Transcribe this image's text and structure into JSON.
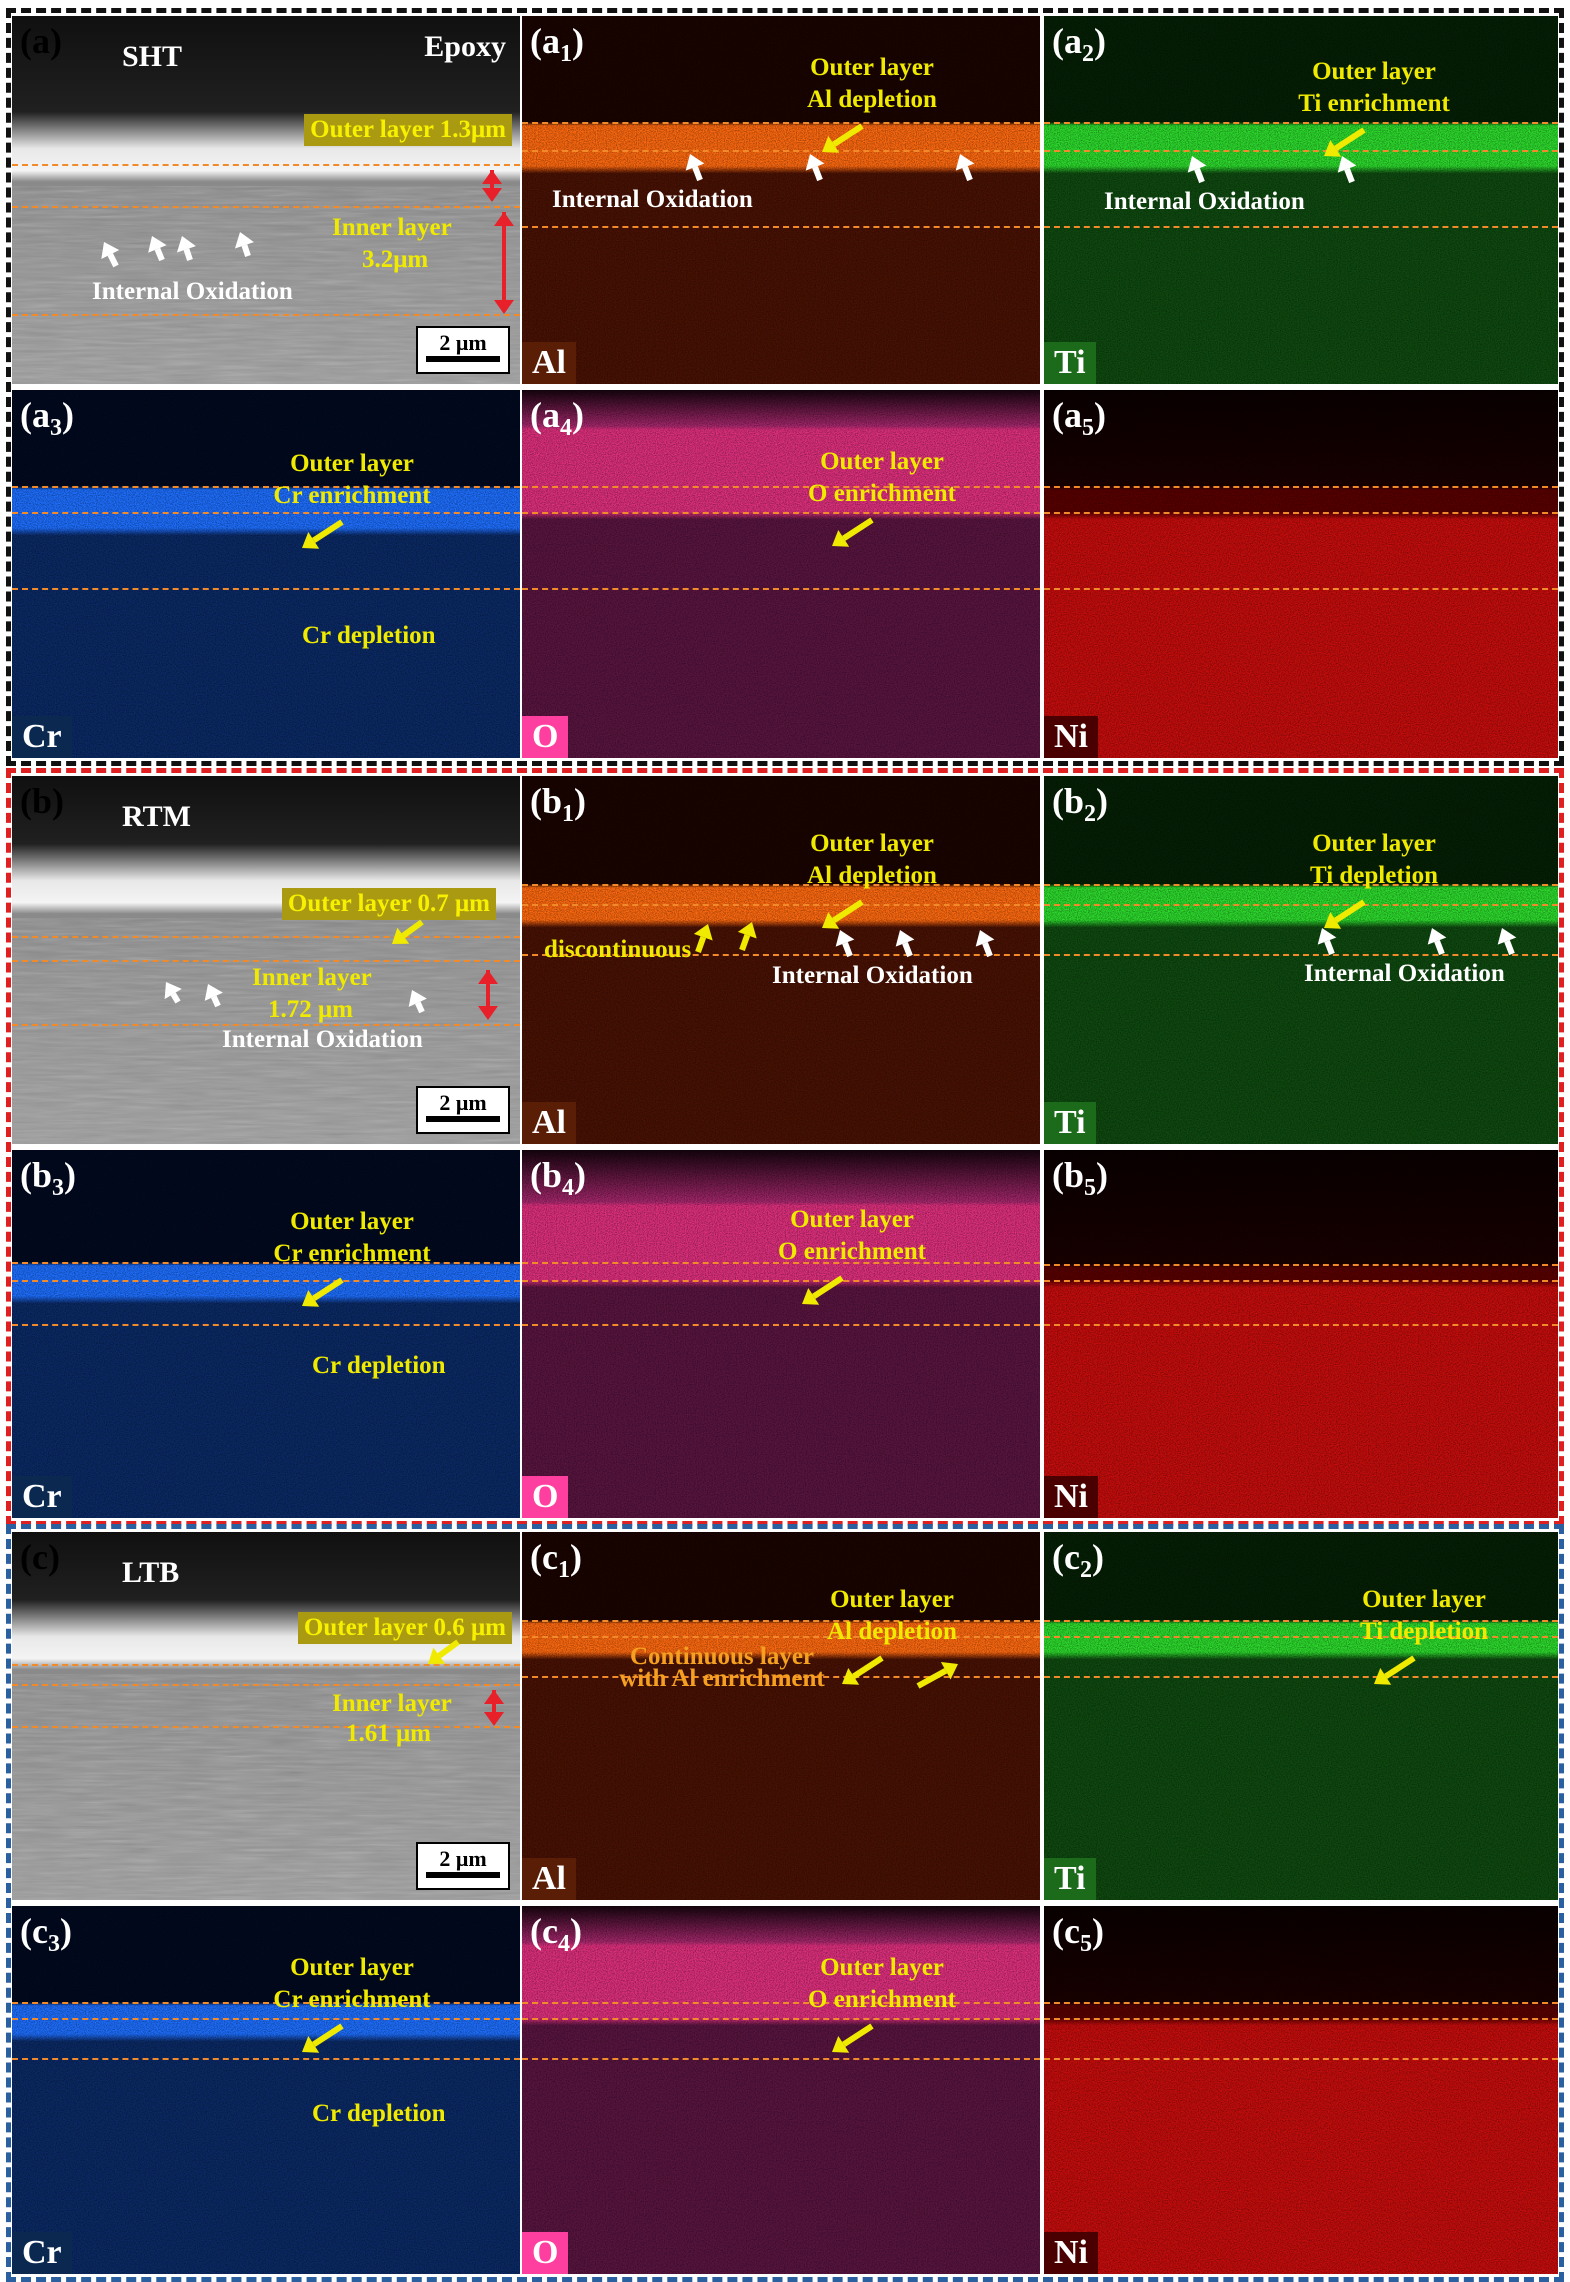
{
  "colors": {
    "frame_a": "#111111",
    "frame_b": "#e02020",
    "frame_c": "#2a5fa0",
    "annotation_yellow": "#f0ea00",
    "dashed_line": "#f08a2a",
    "al_map": "#ff6a10",
    "ti_map": "#2ddc2d",
    "cr_map": "#1e6fff",
    "o_map": "#ff3fa0",
    "ni_map": "#ff1a1a"
  },
  "groups": [
    {
      "id": "a",
      "sample": "SHT",
      "sem": {
        "label_main": "(a)",
        "label_sub": "",
        "sample": "SHT",
        "extra": "Epoxy",
        "outer": "Outer layer  1.3μm",
        "inner1": "Inner layer",
        "inner2": "3.2μm",
        "internal": "Internal Oxidation",
        "scale": "2 μm"
      },
      "maps": [
        {
          "label": "a",
          "sub": "1",
          "element": "Al",
          "ann1": "Outer layer",
          "ann2": "Al  depletion",
          "internal": "Internal Oxidation"
        },
        {
          "label": "a",
          "sub": "2",
          "element": "Ti",
          "ann1": "Outer layer",
          "ann2": "Ti  enrichment",
          "internal": "Internal Oxidation"
        },
        {
          "label": "a",
          "sub": "3",
          "element": "Cr",
          "ann1": "Outer layer",
          "ann2": "Cr  enrichment",
          "extra": "Cr  depletion"
        },
        {
          "label": "a",
          "sub": "4",
          "element": "O",
          "ann1": "Outer layer",
          "ann2": "O  enrichment"
        },
        {
          "label": "a",
          "sub": "5",
          "element": "Ni"
        }
      ]
    },
    {
      "id": "b",
      "sample": "RTM",
      "sem": {
        "label_main": "(b)",
        "label_sub": "",
        "sample": "RTM",
        "extra": "",
        "outer": "Outer layer  0.7 μm",
        "inner1": "Inner layer",
        "inner2": "1.72 μm",
        "internal": "Internal Oxidation",
        "scale": "2 μm"
      },
      "maps": [
        {
          "label": "b",
          "sub": "1",
          "element": "Al",
          "ann1": "Outer layer",
          "ann2": "Al  depletion",
          "internal": "Internal Oxidation",
          "extra": "discontinuous"
        },
        {
          "label": "b",
          "sub": "2",
          "element": "Ti",
          "ann1": "Outer layer",
          "ann2": "Ti depletion",
          "internal": "Internal Oxidation"
        },
        {
          "label": "b",
          "sub": "3",
          "element": "Cr",
          "ann1": "Outer layer",
          "ann2": "Cr  enrichment",
          "extra": "Cr  depletion"
        },
        {
          "label": "b",
          "sub": "4",
          "element": "O",
          "ann1": "Outer layer",
          "ann2": "O  enrichment"
        },
        {
          "label": "b",
          "sub": "5",
          "element": "Ni"
        }
      ]
    },
    {
      "id": "c",
      "sample": "LTB",
      "sem": {
        "label_main": "(c)",
        "label_sub": "",
        "sample": "LTB",
        "extra": "",
        "outer": "Outer layer  0.6 μm",
        "inner1": "Inner layer",
        "inner2": "1.61 μm",
        "internal": "",
        "scale": "2 μm"
      },
      "maps": [
        {
          "label": "c",
          "sub": "1",
          "element": "Al",
          "ann1": "Outer layer",
          "ann2": "Al  depletion",
          "extra": "Continuous layer",
          "extra2": "with  Al enrichment"
        },
        {
          "label": "c",
          "sub": "2",
          "element": "Ti",
          "ann1": "Outer layer",
          "ann2": "Ti  depletion"
        },
        {
          "label": "c",
          "sub": "3",
          "element": "Cr",
          "ann1": "Outer layer",
          "ann2": "Cr  enrichment",
          "extra": "Cr  depletion"
        },
        {
          "label": "c",
          "sub": "4",
          "element": "O",
          "ann1": "Outer layer",
          "ann2": "O  enrichment"
        },
        {
          "label": "c",
          "sub": "5",
          "element": "Ni"
        }
      ]
    }
  ]
}
